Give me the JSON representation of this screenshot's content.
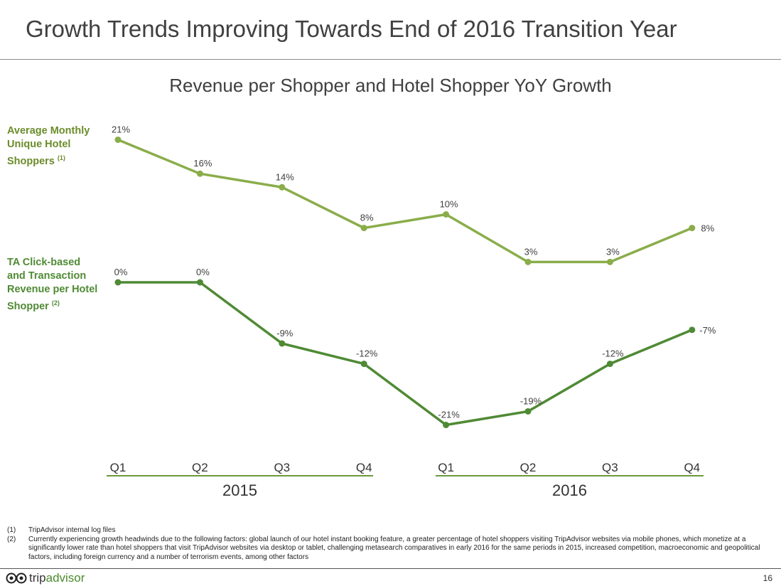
{
  "title": "Growth Trends Improving Towards End of 2016 Transition Year",
  "page_number": "16",
  "logo": {
    "trip": "trip",
    "advisor": "advisor"
  },
  "footnotes": [
    {
      "num": "(1)",
      "text": "TripAdvisor internal log files"
    },
    {
      "num": "(2)",
      "text": "Currently experiencing growth headwinds due to the following factors:  global launch of our hotel instant booking feature, a greater percentage of hotel shoppers visiting TripAdvisor websites via mobile phones, which monetize at a significantly lower rate than hotel shoppers that visit TripAdvisor websites via desktop or tablet, challenging metasearch comparatives in early 2016 for the same periods in 2015, increased competition, macroeconomic and geopolitical factors, including foreign currency and a number of terrorism events, among other factors"
    }
  ],
  "chart_data": {
    "type": "line",
    "title": "Revenue per Shopper and Hotel Shopper YoY Growth",
    "categories": [
      "Q1",
      "Q2",
      "Q3",
      "Q4",
      "Q1",
      "Q2",
      "Q3",
      "Q4"
    ],
    "groups": [
      {
        "label": "2015"
      },
      {
        "label": "2016"
      }
    ],
    "unit": "%",
    "grid": false,
    "series": [
      {
        "name": "Average Monthly Unique Hotel Shoppers",
        "sup": "(1)",
        "color": "#8aad4a",
        "label_color": "#6b8c2a",
        "values": [
          21,
          16,
          14,
          8,
          10,
          3,
          3,
          8
        ]
      },
      {
        "name_lines": [
          "TA Click-based",
          "and Transaction",
          "Revenue per Hotel",
          "Shopper"
        ],
        "name": "TA Click-based and Transaction Revenue per Hotel Shopper",
        "sup": "(2)",
        "color": "#4f8a34",
        "label_color": "#4f8a34",
        "values": [
          0,
          0,
          -9,
          -12,
          -21,
          -19,
          -12,
          -7
        ]
      }
    ]
  }
}
